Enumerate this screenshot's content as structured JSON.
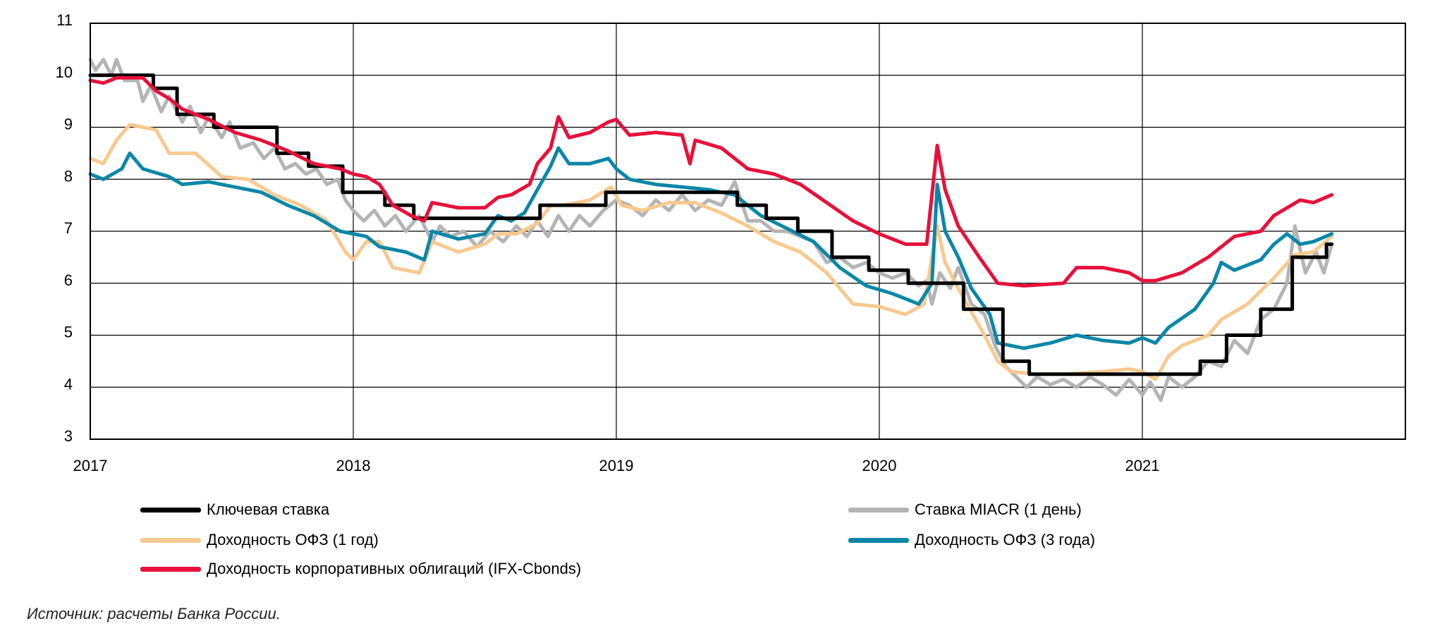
{
  "chart_data": {
    "type": "line",
    "title": "",
    "xlabel": "",
    "ylabel": "",
    "xlim": [
      2017,
      2022
    ],
    "ylim": [
      3,
      11
    ],
    "yticks": [
      3,
      4,
      5,
      6,
      7,
      8,
      9,
      10,
      11
    ],
    "ytick_labels": [
      "3",
      "4",
      "5",
      "6",
      "7",
      "8",
      "9",
      "10",
      "11"
    ],
    "xticks": [
      2017,
      2018,
      2019,
      2020,
      2021
    ],
    "xtick_labels": [
      "2017",
      "2018",
      "2019",
      "2020",
      "2021"
    ],
    "grid": "horizontal and vertical at ticks",
    "legend_position": "bottom",
    "series": [
      {
        "name": "Ключевая ставка",
        "color": "#000000",
        "step": true,
        "x": [
          2017.0,
          2017.24,
          2017.33,
          2017.47,
          2017.71,
          2017.83,
          2017.96,
          2018.12,
          2018.23,
          2018.71,
          2018.96,
          2019.46,
          2019.57,
          2019.69,
          2019.82,
          2019.96,
          2020.11,
          2020.32,
          2020.47,
          2020.57,
          2021.22,
          2021.32,
          2021.45,
          2021.57,
          2021.7,
          2021.72
        ],
        "values": [
          10.0,
          9.75,
          9.25,
          9.0,
          8.5,
          8.25,
          7.75,
          7.5,
          7.25,
          7.5,
          7.75,
          7.5,
          7.25,
          7.0,
          6.5,
          6.25,
          6.0,
          5.5,
          4.5,
          4.25,
          4.5,
          5.0,
          5.5,
          6.5,
          6.75,
          6.75
        ]
      },
      {
        "name": "Ставка MIACR (1 день)",
        "color": "#B4B4B4",
        "x": [
          2017.0,
          2017.02,
          2017.05,
          2017.08,
          2017.1,
          2017.13,
          2017.18,
          2017.2,
          2017.23,
          2017.27,
          2017.3,
          2017.35,
          2017.38,
          2017.42,
          2017.45,
          2017.5,
          2017.53,
          2017.57,
          2017.62,
          2017.66,
          2017.7,
          2017.74,
          2017.78,
          2017.82,
          2017.86,
          2017.9,
          2017.94,
          2017.97,
          2018.0,
          2018.04,
          2018.08,
          2018.12,
          2018.16,
          2018.2,
          2018.25,
          2018.3,
          2018.33,
          2018.37,
          2018.42,
          2018.47,
          2018.52,
          2018.57,
          2018.62,
          2018.66,
          2018.7,
          2018.74,
          2018.78,
          2018.82,
          2018.86,
          2018.9,
          2018.95,
          2019.0,
          2019.05,
          2019.1,
          2019.15,
          2019.2,
          2019.25,
          2019.3,
          2019.35,
          2019.4,
          2019.45,
          2019.5,
          2019.55,
          2019.6,
          2019.65,
          2019.7,
          2019.75,
          2019.8,
          2019.85,
          2019.9,
          2019.95,
          2020.0,
          2020.05,
          2020.1,
          2020.15,
          2020.18,
          2020.2,
          2020.23,
          2020.27,
          2020.3,
          2020.35,
          2020.4,
          2020.44,
          2020.48,
          2020.52,
          2020.56,
          2020.6,
          2020.65,
          2020.7,
          2020.75,
          2020.8,
          2020.85,
          2020.9,
          2020.95,
          2021.0,
          2021.03,
          2021.07,
          2021.1,
          2021.15,
          2021.2,
          2021.25,
          2021.3,
          2021.35,
          2021.4,
          2021.45,
          2021.5,
          2021.55,
          2021.58,
          2021.62,
          2021.66,
          2021.69,
          2021.72
        ],
        "values": [
          10.3,
          10.1,
          10.3,
          10.0,
          10.3,
          9.9,
          9.9,
          9.5,
          9.8,
          9.3,
          9.6,
          9.1,
          9.4,
          8.9,
          9.2,
          8.8,
          9.1,
          8.6,
          8.7,
          8.4,
          8.6,
          8.2,
          8.3,
          8.1,
          8.2,
          7.9,
          8.0,
          7.6,
          7.4,
          7.2,
          7.4,
          7.1,
          7.3,
          7.0,
          7.3,
          6.8,
          7.1,
          6.9,
          7.0,
          6.7,
          7.0,
          6.8,
          7.1,
          6.9,
          7.2,
          6.9,
          7.3,
          7.0,
          7.3,
          7.1,
          7.4,
          7.6,
          7.5,
          7.3,
          7.6,
          7.4,
          7.7,
          7.4,
          7.6,
          7.5,
          7.95,
          7.2,
          7.2,
          7.0,
          7.0,
          6.9,
          6.8,
          6.4,
          6.5,
          6.3,
          6.4,
          6.2,
          6.1,
          6.2,
          5.95,
          6.05,
          5.6,
          6.2,
          5.9,
          6.3,
          5.6,
          5.4,
          4.8,
          4.4,
          4.2,
          4.0,
          4.2,
          4.05,
          4.15,
          4.0,
          4.2,
          4.05,
          3.85,
          4.15,
          3.85,
          4.1,
          3.75,
          4.2,
          4.0,
          4.2,
          4.5,
          4.4,
          4.9,
          4.65,
          5.3,
          5.5,
          6.0,
          7.1,
          6.2,
          6.6,
          6.2,
          6.75
        ]
      },
      {
        "name": "Доходность ОФЗ (1 год)",
        "color": "#F8C98E",
        "x": [
          2017.0,
          2017.05,
          2017.1,
          2017.15,
          2017.25,
          2017.3,
          2017.4,
          2017.5,
          2017.6,
          2017.7,
          2017.8,
          2017.9,
          2017.97,
          2018.0,
          2018.05,
          2018.1,
          2018.15,
          2018.25,
          2018.3,
          2018.4,
          2018.5,
          2018.55,
          2018.62,
          2018.7,
          2018.75,
          2018.8,
          2018.9,
          2018.98,
          2019.02,
          2019.1,
          2019.2,
          2019.3,
          2019.4,
          2019.5,
          2019.6,
          2019.7,
          2019.8,
          2019.9,
          2020.0,
          2020.1,
          2020.17,
          2020.22,
          2020.25,
          2020.3,
          2020.4,
          2020.45,
          2020.5,
          2020.6,
          2020.7,
          2020.85,
          2020.95,
          2021.0,
          2021.05,
          2021.1,
          2021.15,
          2021.25,
          2021.3,
          2021.4,
          2021.5,
          2021.58,
          2021.65,
          2021.72
        ],
        "values": [
          8.4,
          8.3,
          8.75,
          9.05,
          8.95,
          8.5,
          8.5,
          8.05,
          8.0,
          7.7,
          7.5,
          7.2,
          6.6,
          6.45,
          6.8,
          6.8,
          6.3,
          6.2,
          6.8,
          6.6,
          6.75,
          6.95,
          6.95,
          7.15,
          7.5,
          7.5,
          7.6,
          7.85,
          7.5,
          7.4,
          7.55,
          7.55,
          7.35,
          7.1,
          6.8,
          6.6,
          6.2,
          5.6,
          5.55,
          5.4,
          5.6,
          7.1,
          6.4,
          5.9,
          5.0,
          4.5,
          4.3,
          4.25,
          4.25,
          4.3,
          4.35,
          4.3,
          4.15,
          4.6,
          4.8,
          5.0,
          5.3,
          5.6,
          6.1,
          6.55,
          6.6,
          6.9
        ]
      },
      {
        "name": "Доходность ОФЗ (3 года)",
        "color": "#0A87A8",
        "x": [
          2017.0,
          2017.05,
          2017.12,
          2017.15,
          2017.2,
          2017.3,
          2017.35,
          2017.45,
          2017.55,
          2017.65,
          2017.75,
          2017.85,
          2017.95,
          2018.05,
          2018.1,
          2018.2,
          2018.27,
          2018.3,
          2018.4,
          2018.5,
          2018.55,
          2018.6,
          2018.65,
          2018.7,
          2018.75,
          2018.78,
          2018.82,
          2018.9,
          2018.97,
          2019.0,
          2019.05,
          2019.15,
          2019.25,
          2019.35,
          2019.45,
          2019.55,
          2019.65,
          2019.75,
          2019.85,
          2019.95,
          2020.05,
          2020.15,
          2020.2,
          2020.22,
          2020.25,
          2020.3,
          2020.35,
          2020.42,
          2020.45,
          2020.55,
          2020.65,
          2020.75,
          2020.85,
          2020.95,
          2021.0,
          2021.05,
          2021.1,
          2021.2,
          2021.27,
          2021.3,
          2021.35,
          2021.45,
          2021.5,
          2021.55,
          2021.6,
          2021.65,
          2021.72
        ],
        "values": [
          8.1,
          8.0,
          8.2,
          8.5,
          8.2,
          8.05,
          7.9,
          7.95,
          7.85,
          7.75,
          7.5,
          7.3,
          7.0,
          6.9,
          6.7,
          6.6,
          6.45,
          7.0,
          6.85,
          6.95,
          7.3,
          7.2,
          7.35,
          7.8,
          8.25,
          8.6,
          8.3,
          8.3,
          8.4,
          8.2,
          8.0,
          7.9,
          7.85,
          7.8,
          7.7,
          7.3,
          7.05,
          6.8,
          6.3,
          5.95,
          5.8,
          5.6,
          6.0,
          7.9,
          7.0,
          6.5,
          5.9,
          5.4,
          4.85,
          4.75,
          4.85,
          5.0,
          4.9,
          4.85,
          4.95,
          4.85,
          5.15,
          5.5,
          6.0,
          6.4,
          6.25,
          6.45,
          6.75,
          6.95,
          6.75,
          6.8,
          6.95
        ]
      },
      {
        "name": "Доходность корпоративных облигаций (IFX-Cbonds)",
        "color": "#E8103A",
        "x": [
          2017.0,
          2017.05,
          2017.1,
          2017.2,
          2017.25,
          2017.3,
          2017.35,
          2017.45,
          2017.55,
          2017.65,
          2017.75,
          2017.85,
          2017.95,
          2018.0,
          2018.05,
          2018.1,
          2018.15,
          2018.22,
          2018.27,
          2018.3,
          2018.4,
          2018.5,
          2018.55,
          2018.6,
          2018.67,
          2018.7,
          2018.75,
          2018.78,
          2018.82,
          2018.9,
          2018.97,
          2019.0,
          2019.05,
          2019.15,
          2019.25,
          2019.28,
          2019.3,
          2019.4,
          2019.5,
          2019.6,
          2019.7,
          2019.8,
          2019.9,
          2020.0,
          2020.1,
          2020.18,
          2020.22,
          2020.25,
          2020.3,
          2020.38,
          2020.45,
          2020.55,
          2020.7,
          2020.75,
          2020.85,
          2020.95,
          2021.0,
          2021.05,
          2021.15,
          2021.25,
          2021.35,
          2021.45,
          2021.5,
          2021.6,
          2021.65,
          2021.72
        ],
        "values": [
          9.9,
          9.85,
          9.95,
          9.95,
          9.7,
          9.55,
          9.35,
          9.15,
          8.9,
          8.75,
          8.55,
          8.3,
          8.2,
          8.1,
          8.05,
          7.9,
          7.5,
          7.3,
          7.2,
          7.55,
          7.45,
          7.45,
          7.65,
          7.7,
          7.9,
          8.3,
          8.6,
          9.2,
          8.8,
          8.9,
          9.1,
          9.15,
          8.85,
          8.9,
          8.85,
          8.3,
          8.75,
          8.6,
          8.2,
          8.1,
          7.9,
          7.55,
          7.2,
          6.95,
          6.75,
          6.75,
          8.65,
          7.8,
          7.1,
          6.5,
          6.0,
          5.95,
          6.0,
          6.3,
          6.3,
          6.2,
          6.05,
          6.05,
          6.2,
          6.5,
          6.9,
          7.0,
          7.3,
          7.6,
          7.55,
          7.7
        ]
      }
    ]
  },
  "legend": {
    "items": [
      {
        "label": "Ключевая ставка",
        "color": "#000000"
      },
      {
        "label": "Ставка MIACR (1 день)",
        "color": "#B4B4B4"
      },
      {
        "label": "Доходность ОФЗ (1 год)",
        "color": "#F8C98E"
      },
      {
        "label": "Доходность ОФЗ (3 года)",
        "color": "#0A87A8"
      },
      {
        "label": "Доходность корпоративных облигаций (IFX-Cbonds)",
        "color": "#E8103A"
      }
    ]
  },
  "source": "Источник: расчеты Банка России."
}
